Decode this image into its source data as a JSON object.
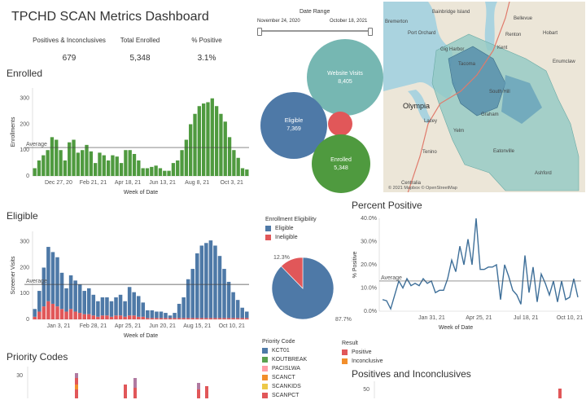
{
  "dashboard": {
    "title": "TPCHD SCAN Metrics Dashboard"
  },
  "kpis": [
    {
      "label": "Positives & Inconclusives",
      "value": "679"
    },
    {
      "label": "Total Enrolled",
      "value": "5,348"
    },
    {
      "label": "% Positive",
      "value": "3.1%"
    }
  ],
  "date_range": {
    "label": "Date Range",
    "start": "November 24, 2020",
    "end": "October 18, 2021",
    "start_fraction": 0.0,
    "end_fraction": 1.0
  },
  "colors": {
    "green": "#4f9a3f",
    "blue": "#4e79a7",
    "red": "#e15759",
    "teal": "#76b7b2",
    "orange": "#f28e2b",
    "purple": "#b07aa1",
    "line": "#3e6f99"
  },
  "bubbles": [
    {
      "label": "Website Visits",
      "value": "8,405",
      "color": "#76b7b2"
    },
    {
      "label": "Eligible",
      "value": "7,369",
      "color": "#4e79a7"
    },
    {
      "label": "Enrolled",
      "value": "5,348",
      "color": "#4f9a3f"
    },
    {
      "label": "",
      "value": "",
      "color": "#e15759"
    }
  ],
  "map": {
    "labels": [
      "Bainbridge Island",
      "Bellevue",
      "Renton",
      "Kent",
      "Hobart",
      "Tacoma",
      "Enumclaw",
      "Olympia",
      "South Hill",
      "Lacey",
      "Yelm",
      "Tenino",
      "Eatonville",
      "Centralia",
      "Ashford",
      "Graham",
      "Gig Harbor",
      "Port Orchard",
      "Bremerton"
    ],
    "attribution": "© 2021 Mapbox  © OpenStreetMap"
  },
  "enrolled_chart": {
    "section_title": "Enrolled",
    "chart_data": {
      "type": "bar",
      "ylabel": "Enrollments",
      "xlabel": "Week of Date",
      "yticks": [
        0,
        100,
        200,
        300
      ],
      "xtick_labels": [
        "Dec 27, 20",
        "Feb 21, 21",
        "Apr 18, 21",
        "Jun 13, 21",
        "Aug 8, 21",
        "Oct 3, 21"
      ],
      "average_label": "Average",
      "average": 110,
      "values": [
        30,
        60,
        80,
        100,
        150,
        140,
        100,
        60,
        130,
        140,
        90,
        100,
        120,
        95,
        50,
        90,
        80,
        60,
        80,
        75,
        50,
        100,
        100,
        85,
        60,
        30,
        30,
        35,
        40,
        30,
        20,
        20,
        50,
        60,
        100,
        140,
        200,
        240,
        270,
        280,
        285,
        300,
        270,
        240,
        210,
        150,
        100,
        70,
        30,
        25
      ]
    }
  },
  "eligible_chart": {
    "section_title": "Eligible",
    "chart_data": {
      "type": "bar",
      "ylabel": "Screener Visits",
      "xlabel": "Week of Date",
      "yticks": [
        0,
        100,
        200,
        300
      ],
      "xtick_labels": [
        "Jan 3, 21",
        "Feb 28, 21",
        "Apr 25, 21",
        "Jun 20, 21",
        "Aug 15, 21",
        "Oct 10, 21"
      ],
      "average_label": "Average",
      "average": 135,
      "series": [
        {
          "name": "Eligible",
          "values": [
            30,
            80,
            150,
            210,
            200,
            190,
            140,
            90,
            130,
            120,
            110,
            90,
            100,
            80,
            60,
            70,
            70,
            60,
            70,
            80,
            60,
            110,
            90,
            80,
            55,
            30,
            30,
            25,
            25,
            20,
            10,
            20,
            55,
            80,
            150,
            190,
            250,
            280,
            290,
            300,
            280,
            240,
            190,
            140,
            100,
            70,
            40,
            25
          ]
        },
        {
          "name": "Ineligible",
          "values": [
            10,
            30,
            50,
            70,
            60,
            50,
            40,
            30,
            40,
            30,
            25,
            20,
            20,
            15,
            10,
            15,
            15,
            10,
            15,
            15,
            10,
            15,
            15,
            10,
            10,
            5,
            5,
            5,
            5,
            5,
            5,
            5,
            5,
            5,
            5,
            5,
            5,
            5,
            5,
            5,
            5,
            5,
            5,
            5,
            5,
            5,
            5,
            5
          ]
        }
      ]
    }
  },
  "enrollment_eligibility": {
    "title": "Enrollment Eligibility",
    "chart_data": {
      "type": "pie",
      "slices": [
        {
          "name": "Eligible",
          "value": 87.7,
          "label": "87.7%"
        },
        {
          "name": "Ineligible",
          "value": 12.3,
          "label": "12.3%"
        }
      ]
    }
  },
  "percent_positive": {
    "section_title": "Percent Positive",
    "chart_data": {
      "type": "line",
      "ylabel": "% Positive",
      "xlabel": "Week of Date",
      "ytick_labels": [
        "0.0%",
        "10.0%",
        "20.0%",
        "30.0%",
        "40.0%"
      ],
      "ylim": [
        0,
        40
      ],
      "xtick_labels": [
        "Jan 31, 21",
        "Apr 25, 21",
        "Jul 18, 21",
        "Oct 10, 21"
      ],
      "average_label": "Average",
      "average": 13,
      "values": [
        5,
        4.5,
        1,
        7,
        13,
        10,
        14,
        11,
        12,
        11,
        14,
        12,
        13,
        8,
        9,
        9,
        14,
        22,
        17,
        28,
        20,
        31,
        20,
        40,
        18,
        18,
        19,
        19,
        20,
        5,
        20,
        15,
        9,
        7,
        3,
        24,
        8,
        19,
        4,
        16,
        12,
        7,
        13,
        4,
        13,
        5,
        6,
        14,
        6
      ]
    }
  },
  "priority_codes": {
    "section_title": "Priority Codes",
    "ytick": "30",
    "legend_title": "Priority Code",
    "legend": [
      {
        "name": "KCT01",
        "color": "#4e79a7"
      },
      {
        "name": "KOUTBREAK",
        "color": "#59a14f"
      },
      {
        "name": "PACISLWA",
        "color": "#ff9da7"
      },
      {
        "name": "SCANCT",
        "color": "#f28e2b"
      },
      {
        "name": "SCANKIDS",
        "color": "#edc948"
      },
      {
        "name": "SCANPCT",
        "color": "#e15759"
      }
    ]
  },
  "result": {
    "legend_title": "Result",
    "legend": [
      {
        "name": "Positive",
        "color": "#e15759"
      },
      {
        "name": "Inconclusive",
        "color": "#f28e2b"
      }
    ]
  },
  "positives_inconclusives": {
    "section_title": "Positives and Inconclusives",
    "ytick": "50"
  }
}
